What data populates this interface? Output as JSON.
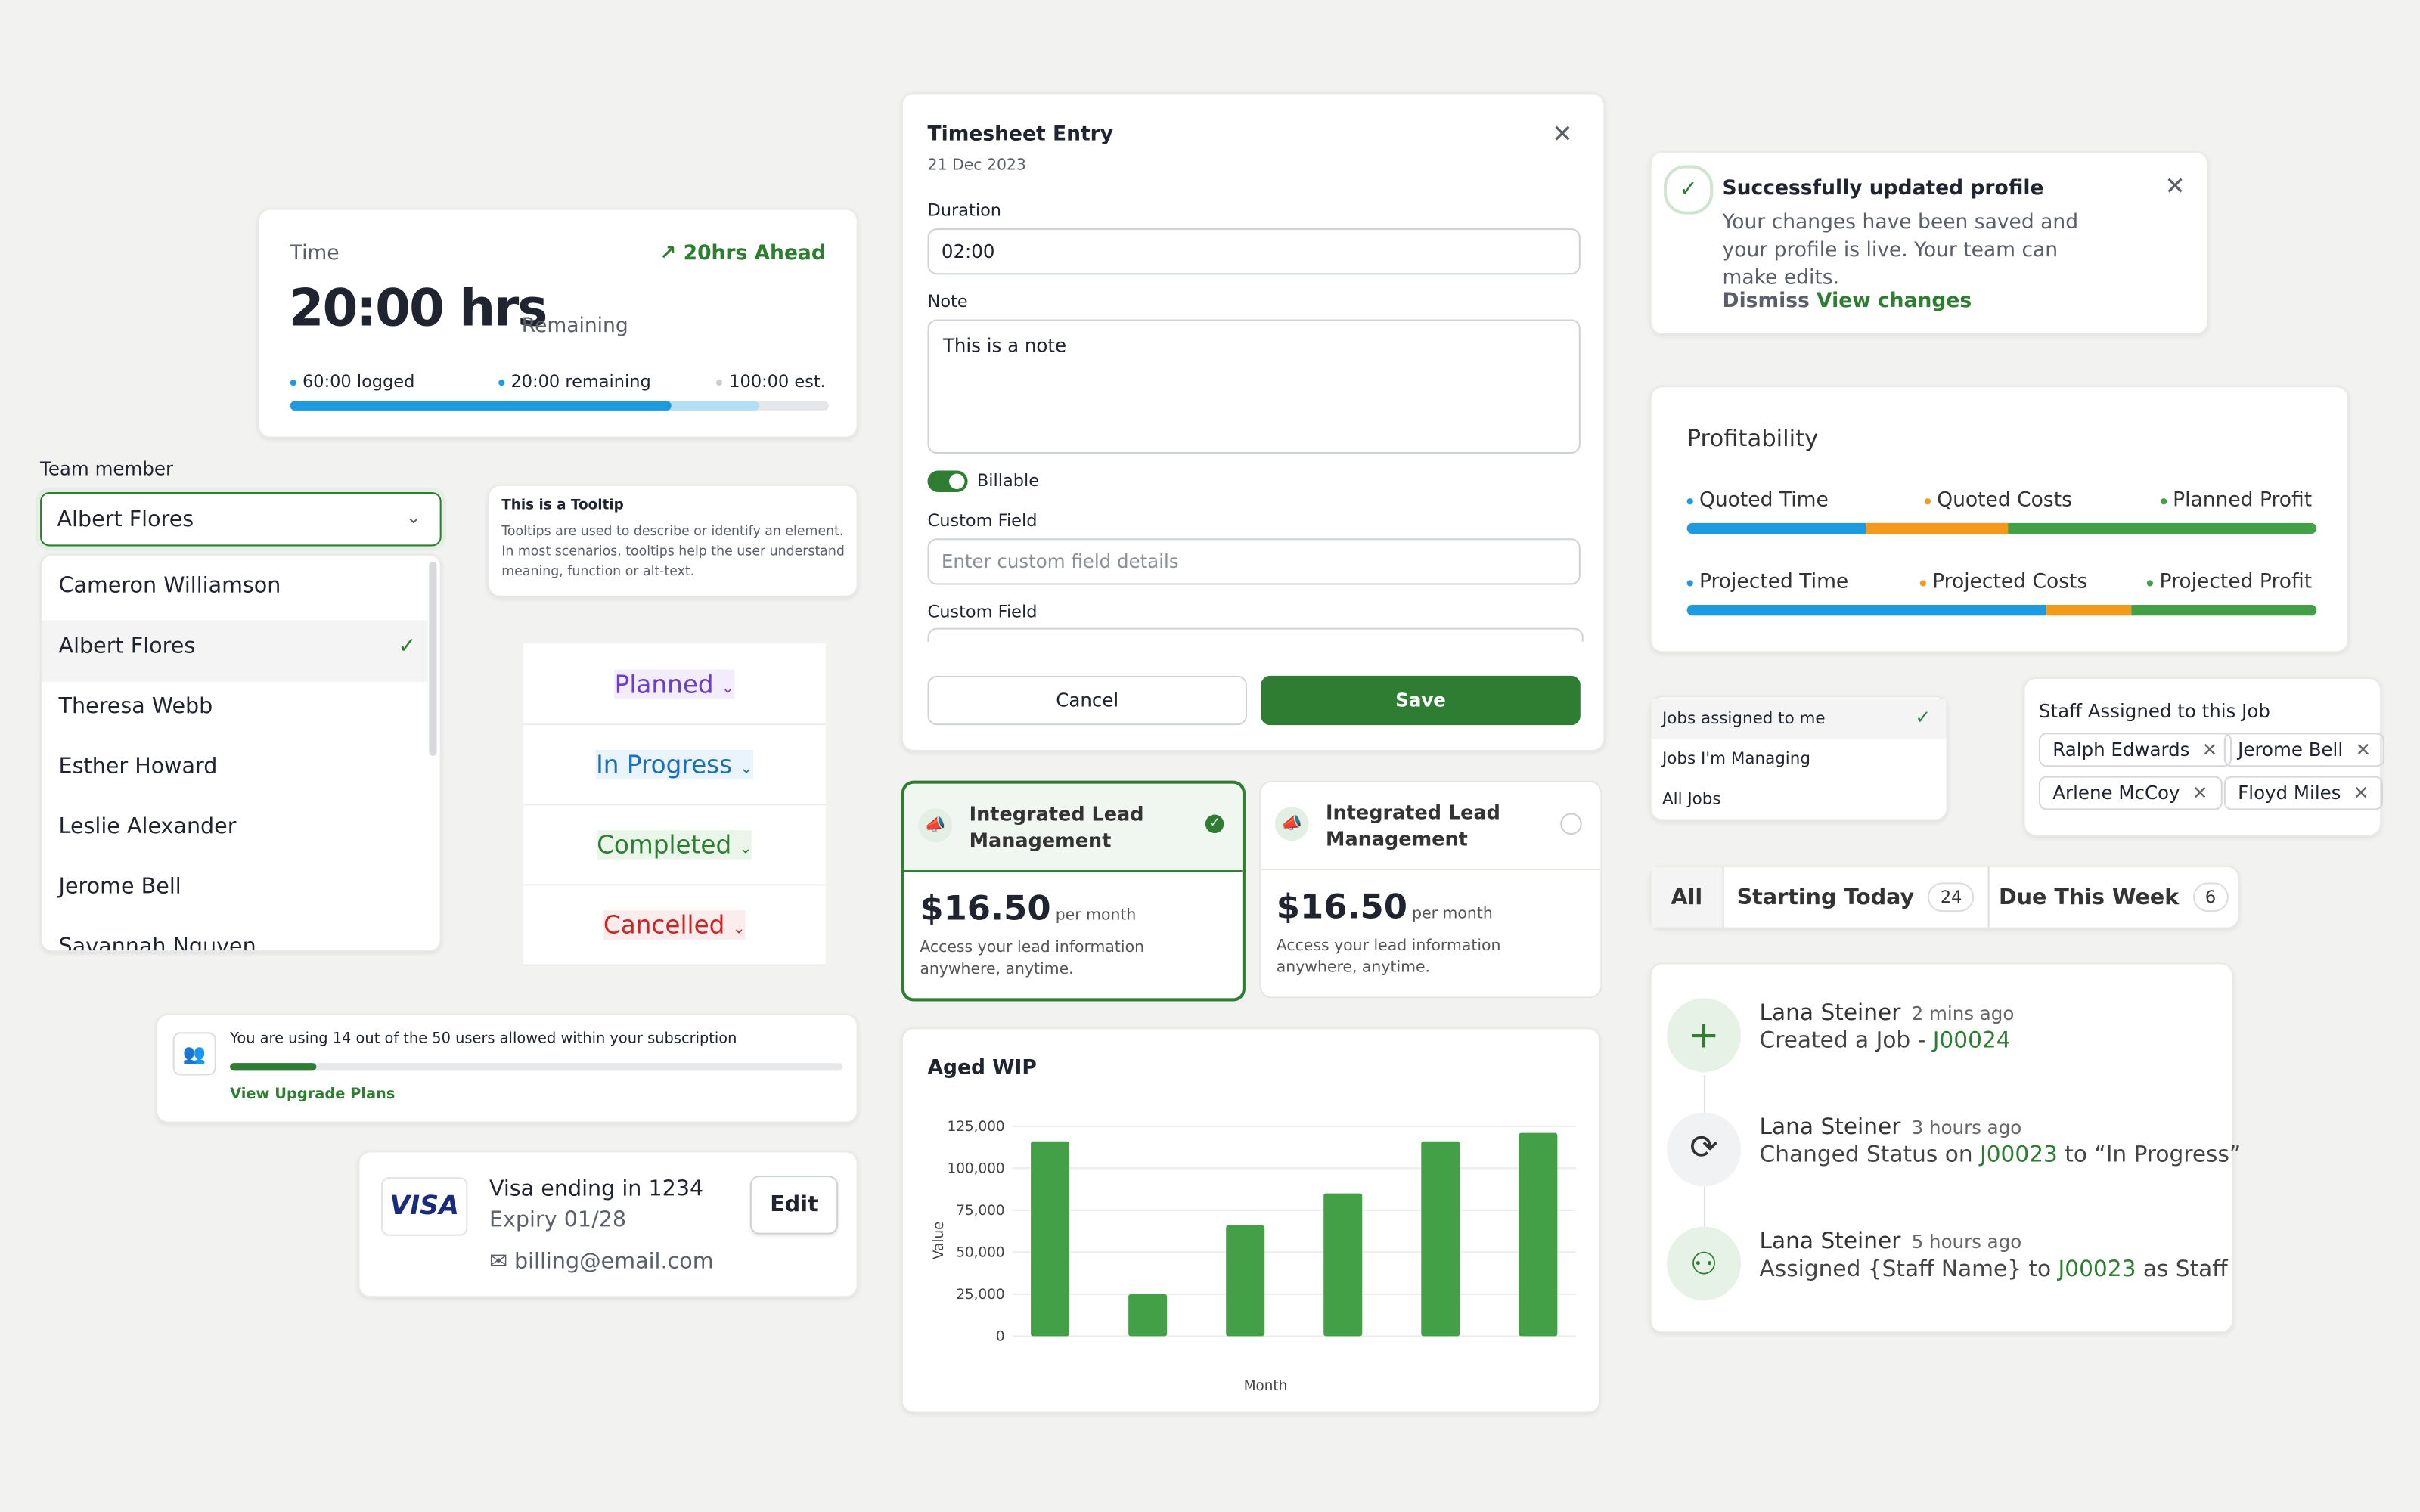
{
  "time_card": {
    "label": "Time",
    "trend": "20hrs Ahead",
    "hours": "20:00 hrs",
    "remaining_label": "Remaining",
    "logged": "60:00 logged",
    "remaining": "20:00 remaining",
    "estimate": "100:00 est."
  },
  "team_member": {
    "label": "Team member",
    "selected": "Albert Flores",
    "options": [
      "Cameron Williamson",
      "Albert Flores",
      "Theresa Webb",
      "Esther Howard",
      "Leslie Alexander",
      "Jerome Bell",
      "Savannah Nguyen"
    ]
  },
  "tooltip": {
    "title": "This is a Tooltip",
    "text": "Tooltips are used to describe or identify an element. In most scenarios, tooltips help the user understand meaning, function or alt-text."
  },
  "statuses": [
    "Planned",
    "In Progress",
    "Completed",
    "Cancelled"
  ],
  "subscription": {
    "text": "You are using 14 out of the 50 users allowed within your subscription",
    "link": "View Upgrade Plans"
  },
  "payment": {
    "card": "VISA",
    "title": "Visa ending in 1234",
    "expiry": "Expiry 01/28",
    "email": "billing@email.com",
    "edit": "Edit"
  },
  "timesheet": {
    "title": "Timesheet Entry",
    "date": "21 Dec 2023",
    "duration_label": "Duration",
    "duration": "02:00",
    "note_label": "Note",
    "note": "This is a note",
    "billable": "Billable",
    "custom_label_1": "Custom Field",
    "custom_placeholder": "Enter custom field details",
    "custom_label_2": "Custom Field",
    "cancel": "Cancel",
    "save": "Save"
  },
  "plans": [
    {
      "name": "Integrated Lead Management",
      "price": "$16.50",
      "period": "per month",
      "description": "Access your lead information anywhere, anytime."
    },
    {
      "name": "Integrated Lead Management",
      "price": "$16.50",
      "period": "per month",
      "description": "Access your lead information anywhere, anytime."
    }
  ],
  "toast": {
    "title": "Successfully updated profile",
    "text": "Your changes have been saved and your profile is live. Your team can make edits.",
    "dismiss": "Dismiss",
    "view": "View changes"
  },
  "profitability": {
    "title": "Profitability",
    "rows": [
      [
        "Quoted Time",
        "Quoted Costs",
        "Planned Profit"
      ],
      [
        "Projected Time",
        "Projected Costs",
        "Projected Profit"
      ]
    ]
  },
  "job_filter": [
    "Jobs assigned to me",
    "Jobs I'm Managing",
    "All Jobs"
  ],
  "staff": {
    "title": "Staff Assigned to this Job",
    "names": [
      "Ralph Edwards",
      "Jerome Bell",
      "Arlene McCoy",
      "Floyd Miles"
    ]
  },
  "tabs": [
    {
      "label": "All"
    },
    {
      "label": "Starting Today",
      "count": 24
    },
    {
      "label": "Due This Week",
      "count": 6
    }
  ],
  "activity": [
    {
      "name": "Lana Steiner",
      "time": "2 mins ago",
      "text": "Created a Job - ",
      "job": "J00024"
    },
    {
      "name": "Lana Steiner",
      "time": "3 hours ago",
      "text": "Changed Status on ",
      "job": "J00023",
      "suffix": " to “In Progress”"
    },
    {
      "name": "Lana Steiner",
      "time": "5 hours ago",
      "text": "Assigned {Staff Name} to ",
      "job": "J00023",
      "suffix": " as Staff"
    }
  ],
  "chart_data": {
    "type": "bar",
    "title": "Aged WIP",
    "x_label": "Month",
    "y_label": "Value",
    "categories": [
      null,
      null,
      null,
      null,
      null,
      null
    ],
    "values": [
      116000,
      25000,
      66000,
      85000,
      116000,
      121000
    ],
    "color": "#43a047",
    "ylim": [
      0,
      125000
    ],
    "yticks": [
      0,
      {
        "value": 25000,
        "label": "25,000"
      },
      {
        "value": 50000,
        "label": "50,000"
      },
      {
        "value": 75000,
        "label": "75,000"
      },
      {
        "value": 100000,
        "label": "100,000"
      },
      {
        "value": 125000,
        "label": "125,000"
      }
    ],
    "grid": true
  }
}
